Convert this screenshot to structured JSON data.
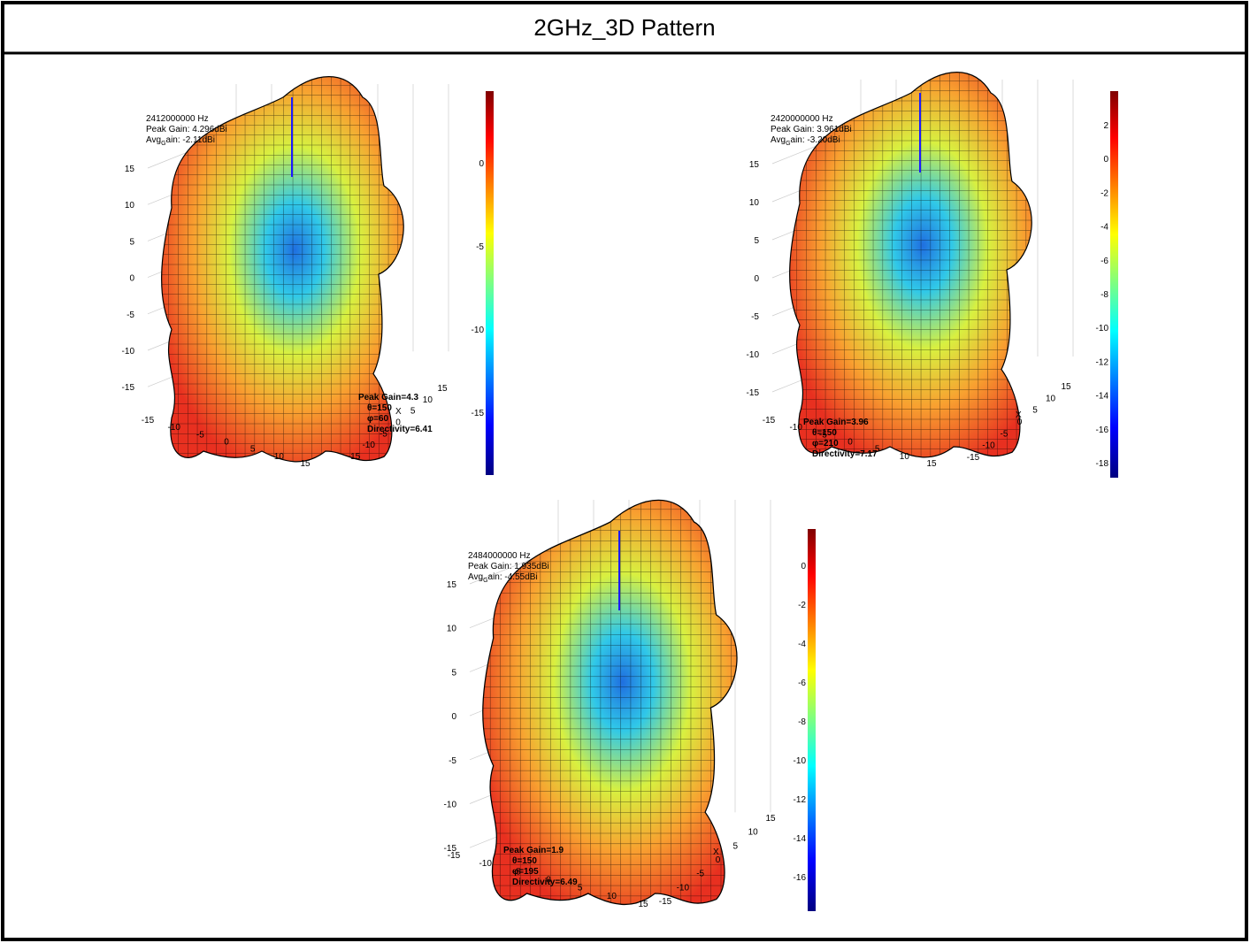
{
  "title": "2GHz_3D Pattern",
  "panels": [
    {
      "frequency": "2412000000 Hz",
      "peak_gain": "Peak Gain: 4.296dBi",
      "avg_gain": {
        "prefix": "Avg",
        "sub": "G",
        "rest": "ain: -2.11dBi"
      },
      "peak_marker": [
        "Peak Gain=4.3",
        "θ=150",
        "φ=60",
        "Directivity=6.41"
      ],
      "axis_label": "X",
      "z_ticks": [
        "15",
        "10",
        "5",
        "0",
        "-5",
        "-10",
        "-15"
      ],
      "x_ticks": [
        "-15",
        "-10",
        "-5",
        "0",
        "5",
        "10",
        "15"
      ],
      "y_ticks": [
        "15",
        "10",
        "5",
        "0",
        "-5",
        "-10",
        "-15"
      ],
      "colorbar_ticks": [
        "0",
        "-5",
        "-10",
        "-15"
      ]
    },
    {
      "frequency": "2420000000 Hz",
      "peak_gain": "Peak Gain: 3.961dBi",
      "avg_gain": {
        "prefix": "Avg",
        "sub": "G",
        "rest": "ain: -3.20dBi"
      },
      "peak_marker": [
        "Peak Gain=3.96",
        "θ=150",
        "φ=210",
        "Directivity=7.17"
      ],
      "axis_label": "X",
      "z_ticks": [
        "15",
        "10",
        "5",
        "0",
        "-5",
        "-10",
        "-15"
      ],
      "x_ticks": [
        "-15",
        "-10",
        "-5",
        "0",
        "5",
        "10",
        "15"
      ],
      "y_ticks": [
        "15",
        "10",
        "5",
        "0",
        "-5",
        "-10",
        "-15"
      ],
      "colorbar_ticks": [
        "2",
        "0",
        "-2",
        "-4",
        "-6",
        "-8",
        "-10",
        "-12",
        "-14",
        "-16",
        "-18"
      ]
    },
    {
      "frequency": "2484000000 Hz",
      "peak_gain": "Peak Gain: 1.935dBi",
      "avg_gain": {
        "prefix": "Avg",
        "sub": "G",
        "rest": "ain: -4.55dBi"
      },
      "peak_marker": [
        "Peak Gain=1.9",
        "θ=150",
        "φ=195",
        "Directivity=6.49"
      ],
      "axis_label": "X",
      "z_ticks": [
        "15",
        "10",
        "5",
        "0",
        "-5",
        "-10",
        "-15"
      ],
      "x_ticks": [
        "-15",
        "-10",
        "-5",
        "0",
        "5",
        "10",
        "15"
      ],
      "y_ticks": [
        "15",
        "10",
        "5",
        "0",
        "-5",
        "-10",
        "-15"
      ],
      "colorbar_ticks": [
        "0",
        "-2",
        "-4",
        "-6",
        "-8",
        "-10",
        "-12",
        "-14",
        "-16"
      ]
    }
  ]
}
